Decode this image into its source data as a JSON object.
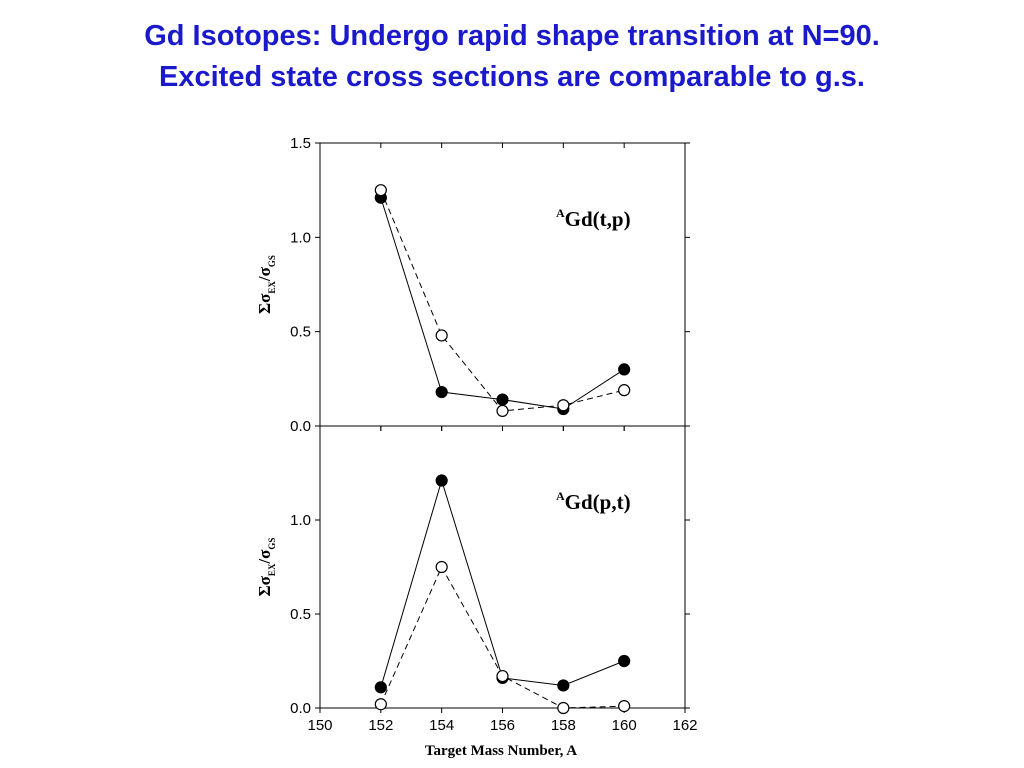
{
  "title": {
    "line1": "Gd Isotopes: Undergo rapid shape transition at N=90.",
    "line2": "Excited state cross sections are comparable to g.s."
  },
  "colors": {
    "title": "#1a1acc",
    "marks": "#000000"
  },
  "chart_data": [
    {
      "type": "line",
      "panel": "top",
      "annotation": {
        "superscript": "A",
        "text": "Gd(t,p)"
      },
      "xlim": [
        150,
        162
      ],
      "ylim": [
        0,
        1.5
      ],
      "yticks": [
        "0.0",
        "0.5",
        "1.0",
        "1.5"
      ],
      "ylabel": {
        "sum": "Σ",
        "sigma": "σ",
        "sub_ex": "EX",
        "slash": "/",
        "sub_gs": "GS"
      },
      "x": [
        152,
        154,
        156,
        158,
        160
      ],
      "series": [
        {
          "marker": "filled-circle",
          "line": "solid",
          "values": [
            1.21,
            0.18,
            0.14,
            0.09,
            0.3
          ]
        },
        {
          "marker": "open-circle",
          "line": "dashed",
          "values": [
            1.25,
            0.48,
            0.08,
            0.11,
            0.19
          ]
        }
      ]
    },
    {
      "type": "line",
      "panel": "bottom",
      "annotation": {
        "superscript": "A",
        "text": "Gd(p,t)"
      },
      "xlim": [
        150,
        162
      ],
      "ylim": [
        0,
        1.5
      ],
      "yticks": [
        "0.0",
        "0.5",
        "1.0"
      ],
      "xticks": [
        "150",
        "152",
        "154",
        "156",
        "158",
        "160",
        "162"
      ],
      "xlabel": "Target Mass Number, A",
      "ylabel": {
        "sum": "Σ",
        "sigma": "σ",
        "sub_ex": "EX",
        "slash": "/",
        "sub_gs": "GS"
      },
      "x": [
        152,
        154,
        156,
        158,
        160
      ],
      "series": [
        {
          "marker": "filled-circle",
          "line": "solid",
          "values": [
            0.11,
            1.21,
            0.16,
            0.12,
            0.25
          ]
        },
        {
          "marker": "open-circle",
          "line": "dashed",
          "values": [
            0.02,
            0.75,
            0.17,
            0.0,
            0.01
          ]
        }
      ]
    }
  ]
}
